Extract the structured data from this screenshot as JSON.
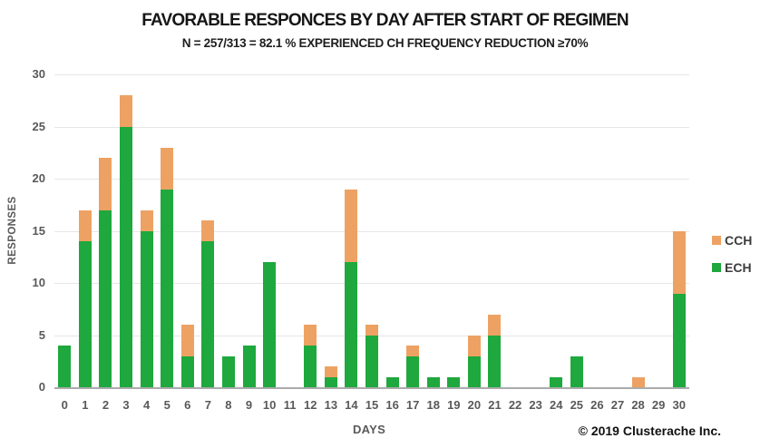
{
  "copyright": "© 2019 Clusterache Inc.",
  "colors": {
    "ech_green": "#1ea83e",
    "cch_orange": "#eda263",
    "gridline": "#e6e6e6",
    "axis_line": "#ababab",
    "tick_text": "#595959"
  },
  "chart_data": {
    "type": "bar",
    "stacked": true,
    "title": "FAVORABLE RESPONCES BY DAY AFTER START OF REGIMEN",
    "subtitle": "N = 257/313 = 82.1 % EXPERIENCED CH FREQUENCY REDUCTION ≥70%",
    "xlabel": "DAYS",
    "ylabel": "RESPONSES",
    "categories": [
      0,
      1,
      2,
      3,
      4,
      5,
      6,
      7,
      8,
      9,
      10,
      11,
      12,
      13,
      14,
      15,
      16,
      17,
      18,
      19,
      20,
      21,
      22,
      23,
      24,
      25,
      26,
      27,
      28,
      29,
      30
    ],
    "series": [
      {
        "name": "ECH",
        "color": "#1ea83e",
        "values": [
          4,
          14,
          17,
          25,
          15,
          19,
          3,
          14,
          3,
          4,
          12,
          0,
          4,
          1,
          12,
          5,
          1,
          3,
          1,
          1,
          3,
          5,
          0,
          0,
          1,
          3,
          0,
          0,
          0,
          0,
          9
        ]
      },
      {
        "name": "CCH",
        "color": "#eda263",
        "values": [
          0,
          3,
          5,
          3,
          2,
          4,
          3,
          2,
          0,
          0,
          0,
          0,
          2,
          1,
          7,
          1,
          0,
          1,
          0,
          0,
          2,
          2,
          0,
          0,
          0,
          0,
          0,
          0,
          1,
          0,
          6
        ]
      }
    ],
    "totals": [
      4,
      17,
      22,
      28,
      17,
      23,
      6,
      16,
      3,
      4,
      12,
      0,
      6,
      2,
      19,
      6,
      1,
      4,
      1,
      1,
      5,
      7,
      0,
      0,
      1,
      3,
      0,
      0,
      1,
      0,
      15
    ],
    "ylim": [
      0,
      30
    ],
    "yticks": [
      0,
      5,
      10,
      15,
      20,
      25,
      30
    ],
    "grid": true,
    "legend": {
      "position": "right",
      "items": [
        {
          "label": "CCH",
          "color": "#eda263"
        },
        {
          "label": "ECH",
          "color": "#1ea83e"
        }
      ]
    }
  }
}
